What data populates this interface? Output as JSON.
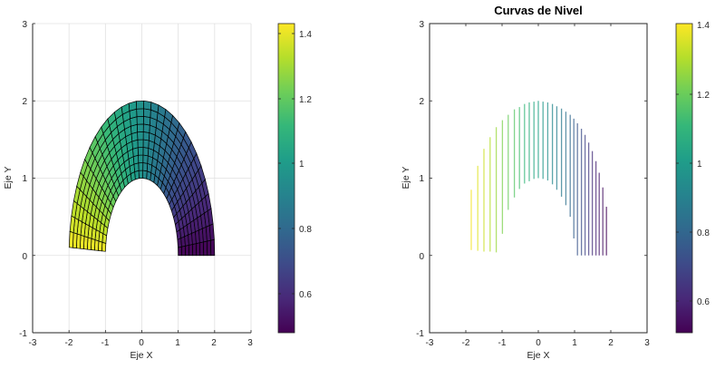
{
  "chart_data": [
    {
      "type": "surface",
      "title": "",
      "xlabel": "Eje X",
      "ylabel": "Eje Y",
      "xlim": [
        -3,
        3
      ],
      "ylim": [
        -1,
        3
      ],
      "xticks": [
        "-3",
        "-2",
        "-1",
        "0",
        "1",
        "2",
        "3"
      ],
      "yticks": [
        "-1",
        "0",
        "1",
        "2",
        "3"
      ],
      "grid": true,
      "colormap": "viridis",
      "shape": "half-annulus r in [1,2], theta in [0.03, pi-0.05] (view from top)",
      "r_range": [
        1,
        2
      ],
      "theta_range_deg": [
        0,
        177
      ],
      "mesh": {
        "radial_divisions": 10,
        "angular_divisions": 30
      },
      "color_range": [
        0.48,
        1.44
      ],
      "colorbar": {
        "ticks": [
          "0.6",
          "0.8",
          "1",
          "1.2",
          "1.4"
        ],
        "range": [
          0.48,
          1.44
        ]
      }
    },
    {
      "type": "contour",
      "title": "Curvas de Nivel",
      "xlabel": "Eje X",
      "ylabel": "Eje Y",
      "xlim": [
        -3,
        3
      ],
      "ylim": [
        -1,
        3
      ],
      "xticks": [
        "-3",
        "-2",
        "-1",
        "0",
        "1",
        "2",
        "3"
      ],
      "yticks": [
        "-1",
        "0",
        "1",
        "2",
        "3"
      ],
      "grid": false,
      "colormap": "viridis",
      "color_range": [
        0.5,
        1.4
      ],
      "colorbar": {
        "ticks": [
          "0.6",
          "0.8",
          "1",
          "1.2",
          "1.4"
        ],
        "range": [
          0.5,
          1.4
        ]
      },
      "levels": [
        {
          "x": -1.85,
          "y_top": 0.85,
          "y_bottom": 0.07,
          "value": 1.39
        },
        {
          "x": -1.67,
          "y_top": 1.16,
          "y_bottom": 0.06,
          "value": 1.36
        },
        {
          "x": -1.5,
          "y_top": 1.38,
          "y_bottom": 0.05,
          "value": 1.33
        },
        {
          "x": -1.33,
          "y_top": 1.53,
          "y_bottom": 0.05,
          "value": 1.3
        },
        {
          "x": -1.16,
          "y_top": 1.66,
          "y_bottom": 0.04,
          "value": 1.26
        },
        {
          "x": -0.99,
          "y_top": 1.75,
          "y_bottom": 0.28,
          "value": 1.22
        },
        {
          "x": -0.83,
          "y_top": 1.82,
          "y_bottom": 0.59,
          "value": 1.19
        },
        {
          "x": -0.66,
          "y_top": 1.89,
          "y_bottom": 0.75,
          "value": 1.16
        },
        {
          "x": -0.52,
          "y_top": 1.92,
          "y_bottom": 0.86,
          "value": 1.13
        },
        {
          "x": -0.38,
          "y_top": 1.96,
          "y_bottom": 0.93,
          "value": 1.1
        },
        {
          "x": -0.25,
          "y_top": 1.98,
          "y_bottom": 0.96,
          "value": 1.07
        },
        {
          "x": -0.12,
          "y_top": 1.99,
          "y_bottom": 0.99,
          "value": 1.04
        },
        {
          "x": 0.0,
          "y_top": 2.0,
          "y_bottom": 1.0,
          "value": 1.01
        },
        {
          "x": 0.13,
          "y_top": 1.99,
          "y_bottom": 0.99,
          "value": 0.98
        },
        {
          "x": 0.26,
          "y_top": 1.98,
          "y_bottom": 0.97,
          "value": 0.95
        },
        {
          "x": 0.39,
          "y_top": 1.96,
          "y_bottom": 0.92,
          "value": 0.92
        },
        {
          "x": 0.51,
          "y_top": 1.93,
          "y_bottom": 0.85,
          "value": 0.89
        },
        {
          "x": 0.64,
          "y_top": 1.9,
          "y_bottom": 0.76,
          "value": 0.86
        },
        {
          "x": 0.76,
          "y_top": 1.86,
          "y_bottom": 0.65,
          "value": 0.83
        },
        {
          "x": 0.88,
          "y_top": 1.82,
          "y_bottom": 0.5,
          "value": 0.8
        },
        {
          "x": 0.98,
          "y_top": 1.77,
          "y_bottom": 0.22,
          "value": 0.77
        },
        {
          "x": 1.08,
          "y_top": 1.71,
          "y_bottom": 0.0,
          "value": 0.74
        },
        {
          "x": 1.19,
          "y_top": 1.64,
          "y_bottom": 0.0,
          "value": 0.71
        },
        {
          "x": 1.29,
          "y_top": 1.56,
          "y_bottom": 0.0,
          "value": 0.68
        },
        {
          "x": 1.39,
          "y_top": 1.46,
          "y_bottom": 0.0,
          "value": 0.65
        },
        {
          "x": 1.49,
          "y_top": 1.35,
          "y_bottom": 0.0,
          "value": 0.62
        },
        {
          "x": 1.59,
          "y_top": 1.22,
          "y_bottom": 0.0,
          "value": 0.59
        },
        {
          "x": 1.68,
          "y_top": 1.07,
          "y_bottom": 0.0,
          "value": 0.57
        },
        {
          "x": 1.78,
          "y_top": 0.88,
          "y_bottom": 0.0,
          "value": 0.54
        },
        {
          "x": 1.88,
          "y_top": 0.63,
          "y_bottom": 0.0,
          "value": 0.51
        }
      ]
    }
  ],
  "plots": {
    "left": {
      "xlabel": "Eje X",
      "ylabel": "Eje Y",
      "xticks": [
        "-3",
        "-2",
        "-1",
        "0",
        "1",
        "2",
        "3"
      ],
      "yticks": [
        "-1",
        "0",
        "1",
        "2",
        "3"
      ],
      "colorbar_ticks": [
        "0.6",
        "0.8",
        "1",
        "1.2",
        "1.4"
      ]
    },
    "right": {
      "title": "Curvas de Nivel",
      "xlabel": "Eje X",
      "ylabel": "Eje Y",
      "xticks": [
        "-3",
        "-2",
        "-1",
        "0",
        "1",
        "2",
        "3"
      ],
      "yticks": [
        "-1",
        "0",
        "1",
        "2",
        "3"
      ],
      "colorbar_ticks": [
        "0.6",
        "0.8",
        "1",
        "1.2",
        "1.4"
      ]
    }
  },
  "colors": {
    "viridis": [
      "#440154",
      "#482878",
      "#3e4a89",
      "#31688e",
      "#26828e",
      "#1f9e89",
      "#35b779",
      "#6ece58",
      "#b5de2b",
      "#fde725"
    ],
    "grid": "#e0e0e0",
    "axis": "#262626",
    "mesh_edge": "#000000"
  }
}
